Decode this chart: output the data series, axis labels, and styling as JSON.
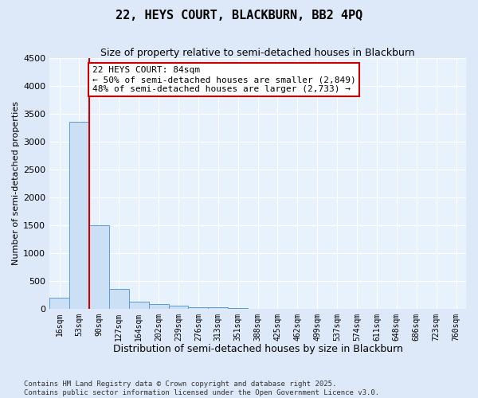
{
  "title1": "22, HEYS COURT, BLACKBURN, BB2 4PQ",
  "title2": "Size of property relative to semi-detached houses in Blackburn",
  "xlabel": "Distribution of semi-detached houses by size in Blackburn",
  "ylabel": "Number of semi-detached properties",
  "categories": [
    "16sqm",
    "53sqm",
    "90sqm",
    "127sqm",
    "164sqm",
    "202sqm",
    "239sqm",
    "276sqm",
    "313sqm",
    "351sqm",
    "388sqm",
    "425sqm",
    "462sqm",
    "499sqm",
    "537sqm",
    "574sqm",
    "611sqm",
    "648sqm",
    "686sqm",
    "723sqm",
    "760sqm"
  ],
  "bar_values": [
    200,
    3350,
    1500,
    350,
    130,
    80,
    50,
    30,
    20,
    10,
    0,
    0,
    0,
    0,
    0,
    0,
    0,
    0,
    0,
    0,
    0
  ],
  "bar_color": "#cce0f5",
  "bar_edge_color": "#5b9bd5",
  "vline_color": "#cc0000",
  "vline_x_idx": 1.5,
  "annotation_text": "22 HEYS COURT: 84sqm\n← 50% of semi-detached houses are smaller (2,849)\n48% of semi-detached houses are larger (2,733) →",
  "annotation_box_color": "#ffffff",
  "annotation_box_edge": "#cc0000",
  "ylim": [
    0,
    4500
  ],
  "yticks": [
    0,
    500,
    1000,
    1500,
    2000,
    2500,
    3000,
    3500,
    4000,
    4500
  ],
  "bg_color": "#dde8f8",
  "plot_bg_color": "#e8f2fd",
  "footnote": "Contains HM Land Registry data © Crown copyright and database right 2025.\nContains public sector information licensed under the Open Government Licence v3.0.",
  "title1_fontsize": 11,
  "title2_fontsize": 9,
  "xlabel_fontsize": 9,
  "ylabel_fontsize": 8,
  "annot_fontsize": 8
}
